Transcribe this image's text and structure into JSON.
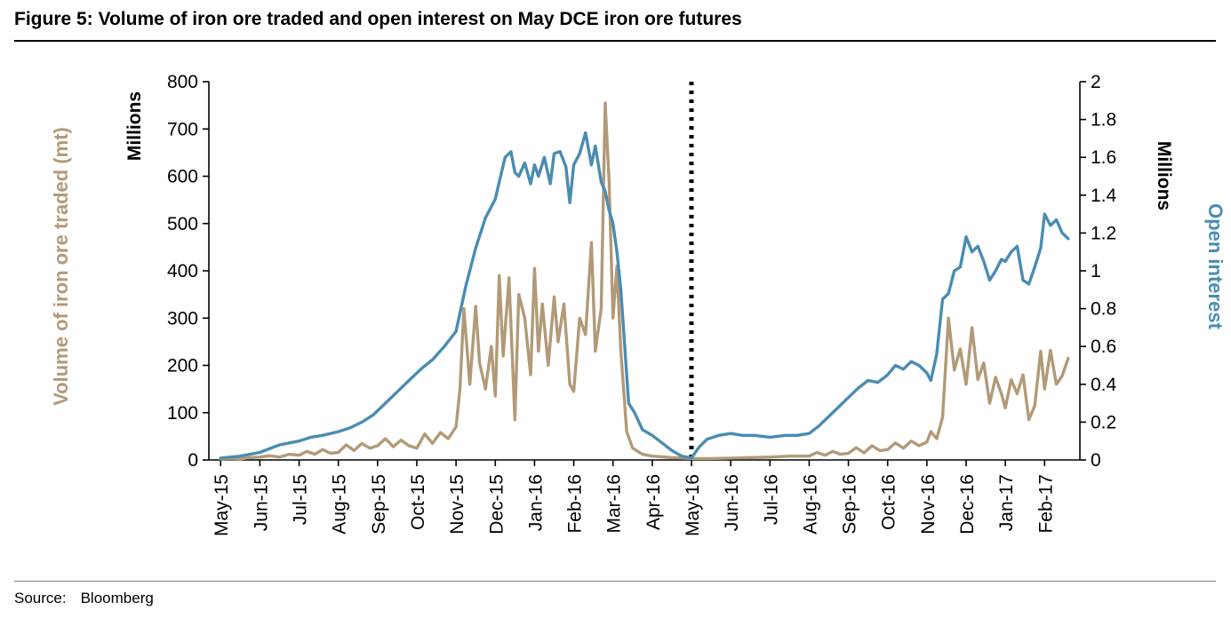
{
  "figure": {
    "title": "Figure 5: Volume of iron ore traded  and open interest on May DCE iron ore futures",
    "source_label": "Source:",
    "source_value": "Bloomberg"
  },
  "chart_data": {
    "type": "line",
    "title": "Volume of iron ore traded and open interest on May DCE iron ore futures",
    "categories": [
      "May-15",
      "Jun-15",
      "Jul-15",
      "Aug-15",
      "Sep-15",
      "Oct-15",
      "Nov-15",
      "Dec-15",
      "Jan-16",
      "Feb-16",
      "Mar-16",
      "Apr-16",
      "May-16",
      "Jun-16",
      "Jul-16",
      "Aug-16",
      "Sep-16",
      "Oct-16",
      "Nov-16",
      "Dec-16",
      "Jan-17",
      "Feb-17"
    ],
    "x_tick_rotation": -90,
    "grid": "off",
    "legend": "none",
    "left_axis": {
      "title": "Millions",
      "label": "Volume of iron ore traded (mt)",
      "min": 0,
      "max": 800,
      "step": 100,
      "tick_labels": [
        "0",
        "100",
        "200",
        "300",
        "400",
        "500",
        "600",
        "700",
        "800"
      ],
      "color": "#b29a78"
    },
    "right_axis": {
      "title": "Millions",
      "label": "Open interest",
      "min": 0,
      "max": 2,
      "step": 0.2,
      "tick_labels": [
        "0",
        "0.2",
        "0.4",
        "0.6",
        "0.8",
        "1",
        "1.2",
        "1.4",
        "1.6",
        "1.8",
        "2"
      ],
      "color": "#4a8cb2"
    },
    "annotation": {
      "type": "vertical-dotted-line",
      "at_category": "May-16",
      "color": "#000000"
    },
    "series": [
      {
        "name": "Volume of iron ore traded (mt)",
        "axis": "left",
        "color": "#b29a78",
        "x_unit": "months since May-15",
        "points": [
          [
            0,
            2
          ],
          [
            0.25,
            3
          ],
          [
            0.5,
            2
          ],
          [
            0.75,
            5
          ],
          [
            1,
            6
          ],
          [
            1.25,
            9
          ],
          [
            1.5,
            6
          ],
          [
            1.75,
            12
          ],
          [
            2,
            10
          ],
          [
            2.2,
            18
          ],
          [
            2.4,
            12
          ],
          [
            2.6,
            22
          ],
          [
            2.8,
            14
          ],
          [
            3,
            16
          ],
          [
            3.2,
            32
          ],
          [
            3.4,
            20
          ],
          [
            3.6,
            35
          ],
          [
            3.8,
            25
          ],
          [
            4,
            30
          ],
          [
            4.2,
            45
          ],
          [
            4.4,
            28
          ],
          [
            4.6,
            42
          ],
          [
            4.8,
            30
          ],
          [
            5,
            25
          ],
          [
            5.2,
            55
          ],
          [
            5.4,
            35
          ],
          [
            5.6,
            58
          ],
          [
            5.8,
            45
          ],
          [
            6,
            70
          ],
          [
            6.1,
            150
          ],
          [
            6.2,
            320
          ],
          [
            6.35,
            160
          ],
          [
            6.5,
            325
          ],
          [
            6.6,
            205
          ],
          [
            6.75,
            150
          ],
          [
            6.9,
            240
          ],
          [
            7,
            135
          ],
          [
            7.1,
            390
          ],
          [
            7.2,
            220
          ],
          [
            7.35,
            385
          ],
          [
            7.5,
            85
          ],
          [
            7.6,
            350
          ],
          [
            7.75,
            300
          ],
          [
            7.9,
            180
          ],
          [
            8,
            405
          ],
          [
            8.1,
            230
          ],
          [
            8.2,
            330
          ],
          [
            8.35,
            200
          ],
          [
            8.5,
            345
          ],
          [
            8.6,
            250
          ],
          [
            8.75,
            330
          ],
          [
            8.9,
            160
          ],
          [
            9,
            145
          ],
          [
            9.15,
            300
          ],
          [
            9.3,
            265
          ],
          [
            9.45,
            460
          ],
          [
            9.55,
            230
          ],
          [
            9.7,
            320
          ],
          [
            9.8,
            755
          ],
          [
            9.9,
            590
          ],
          [
            10,
            300
          ],
          [
            10.1,
            410
          ],
          [
            10.2,
            230
          ],
          [
            10.35,
            60
          ],
          [
            10.5,
            25
          ],
          [
            10.75,
            12
          ],
          [
            11,
            8
          ],
          [
            11.5,
            5
          ],
          [
            12,
            3
          ],
          [
            12.5,
            3
          ],
          [
            13,
            4
          ],
          [
            13.5,
            5
          ],
          [
            14,
            6
          ],
          [
            14.5,
            8
          ],
          [
            15,
            8
          ],
          [
            15.2,
            16
          ],
          [
            15.4,
            10
          ],
          [
            15.6,
            18
          ],
          [
            15.8,
            12
          ],
          [
            16,
            14
          ],
          [
            16.2,
            26
          ],
          [
            16.4,
            15
          ],
          [
            16.6,
            30
          ],
          [
            16.8,
            20
          ],
          [
            17,
            22
          ],
          [
            17.2,
            36
          ],
          [
            17.4,
            25
          ],
          [
            17.6,
            40
          ],
          [
            17.8,
            30
          ],
          [
            18,
            38
          ],
          [
            18.1,
            60
          ],
          [
            18.25,
            45
          ],
          [
            18.4,
            90
          ],
          [
            18.55,
            300
          ],
          [
            18.7,
            190
          ],
          [
            18.85,
            235
          ],
          [
            19,
            160
          ],
          [
            19.15,
            280
          ],
          [
            19.3,
            170
          ],
          [
            19.45,
            205
          ],
          [
            19.6,
            120
          ],
          [
            19.75,
            175
          ],
          [
            19.9,
            140
          ],
          [
            20,
            110
          ],
          [
            20.15,
            170
          ],
          [
            20.3,
            140
          ],
          [
            20.45,
            180
          ],
          [
            20.6,
            85
          ],
          [
            20.75,
            115
          ],
          [
            20.9,
            230
          ],
          [
            21,
            150
          ],
          [
            21.15,
            232
          ],
          [
            21.3,
            160
          ],
          [
            21.45,
            178
          ],
          [
            21.6,
            215
          ]
        ]
      },
      {
        "name": "Open interest",
        "axis": "right",
        "color": "#4a8cb2",
        "x_unit": "months since May-15",
        "points": [
          [
            0,
            0.01
          ],
          [
            0.5,
            0.02
          ],
          [
            1,
            0.04
          ],
          [
            1.5,
            0.08
          ],
          [
            2,
            0.1
          ],
          [
            2.3,
            0.12
          ],
          [
            2.6,
            0.13
          ],
          [
            3,
            0.15
          ],
          [
            3.3,
            0.17
          ],
          [
            3.6,
            0.2
          ],
          [
            3.9,
            0.24
          ],
          [
            4.2,
            0.3
          ],
          [
            4.5,
            0.36
          ],
          [
            4.8,
            0.42
          ],
          [
            5.1,
            0.48
          ],
          [
            5.4,
            0.53
          ],
          [
            5.7,
            0.6
          ],
          [
            6,
            0.68
          ],
          [
            6.25,
            0.92
          ],
          [
            6.5,
            1.12
          ],
          [
            6.75,
            1.28
          ],
          [
            7,
            1.38
          ],
          [
            7.1,
            1.47
          ],
          [
            7.25,
            1.6
          ],
          [
            7.4,
            1.63
          ],
          [
            7.5,
            1.52
          ],
          [
            7.6,
            1.5
          ],
          [
            7.75,
            1.57
          ],
          [
            7.9,
            1.46
          ],
          [
            8,
            1.56
          ],
          [
            8.1,
            1.5
          ],
          [
            8.25,
            1.6
          ],
          [
            8.4,
            1.46
          ],
          [
            8.5,
            1.62
          ],
          [
            8.65,
            1.63
          ],
          [
            8.8,
            1.55
          ],
          [
            8.9,
            1.36
          ],
          [
            9,
            1.56
          ],
          [
            9.15,
            1.62
          ],
          [
            9.3,
            1.73
          ],
          [
            9.45,
            1.56
          ],
          [
            9.55,
            1.66
          ],
          [
            9.7,
            1.47
          ],
          [
            9.8,
            1.42
          ],
          [
            9.9,
            1.32
          ],
          [
            10,
            1.25
          ],
          [
            10.1,
            1.1
          ],
          [
            10.2,
            0.9
          ],
          [
            10.3,
            0.6
          ],
          [
            10.4,
            0.3
          ],
          [
            10.55,
            0.25
          ],
          [
            10.75,
            0.16
          ],
          [
            11,
            0.13
          ],
          [
            11.25,
            0.09
          ],
          [
            11.5,
            0.05
          ],
          [
            11.75,
            0.02
          ],
          [
            12,
            0.01
          ],
          [
            12.2,
            0.07
          ],
          [
            12.4,
            0.11
          ],
          [
            12.7,
            0.13
          ],
          [
            13,
            0.14
          ],
          [
            13.3,
            0.13
          ],
          [
            13.6,
            0.13
          ],
          [
            14,
            0.12
          ],
          [
            14.4,
            0.13
          ],
          [
            14.7,
            0.13
          ],
          [
            15,
            0.14
          ],
          [
            15.25,
            0.18
          ],
          [
            15.5,
            0.23
          ],
          [
            15.75,
            0.28
          ],
          [
            16,
            0.33
          ],
          [
            16.25,
            0.38
          ],
          [
            16.5,
            0.42
          ],
          [
            16.75,
            0.41
          ],
          [
            17,
            0.45
          ],
          [
            17.2,
            0.5
          ],
          [
            17.4,
            0.48
          ],
          [
            17.6,
            0.52
          ],
          [
            17.8,
            0.5
          ],
          [
            18,
            0.46
          ],
          [
            18.1,
            0.42
          ],
          [
            18.25,
            0.56
          ],
          [
            18.4,
            0.85
          ],
          [
            18.55,
            0.88
          ],
          [
            18.7,
            1
          ],
          [
            18.85,
            1.02
          ],
          [
            19,
            1.18
          ],
          [
            19.15,
            1.1
          ],
          [
            19.3,
            1.13
          ],
          [
            19.45,
            1.05
          ],
          [
            19.6,
            0.95
          ],
          [
            19.75,
            1
          ],
          [
            19.9,
            1.06
          ],
          [
            20,
            1.05
          ],
          [
            20.15,
            1.1
          ],
          [
            20.3,
            1.13
          ],
          [
            20.45,
            0.95
          ],
          [
            20.6,
            0.93
          ],
          [
            20.75,
            1.02
          ],
          [
            20.9,
            1.12
          ],
          [
            21,
            1.3
          ],
          [
            21.15,
            1.24
          ],
          [
            21.3,
            1.27
          ],
          [
            21.45,
            1.2
          ],
          [
            21.6,
            1.17
          ]
        ]
      }
    ]
  }
}
